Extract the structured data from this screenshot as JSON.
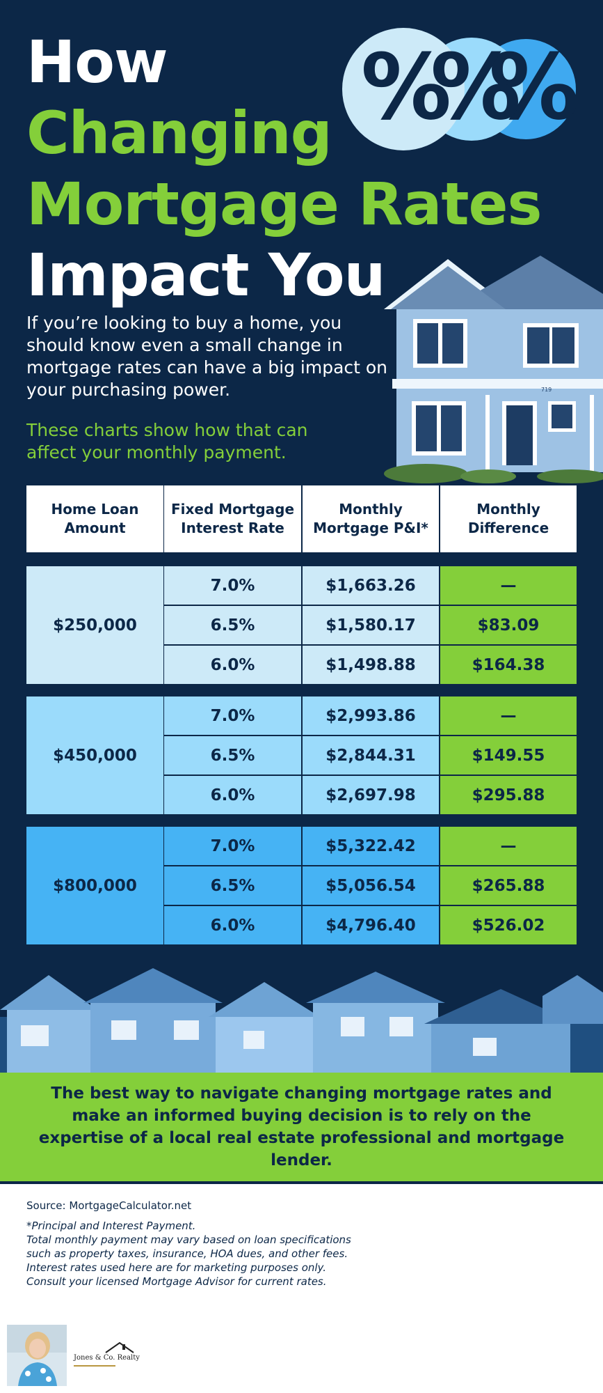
{
  "title": {
    "line1": "How",
    "line2": "Changing",
    "line3": "Mortgage Rates",
    "line4": "Impact You"
  },
  "intro": "If you’re looking to buy a home, you should know even a small change in mortgage rates can have a big impact on your purchasing power.",
  "subtitle": "These charts show how that can affect your monthly payment.",
  "percent_glyphs": [
    "%",
    "%",
    "%"
  ],
  "table": {
    "headers": [
      "Home Loan Amount",
      "Fixed Mortgage Interest Rate",
      "Monthly Mortgage P&I*",
      "Monthly Difference"
    ],
    "groups": [
      {
        "loan": "$250,000",
        "rows": [
          {
            "rate": "7.0%",
            "payment": "$1,663.26",
            "difference": "—"
          },
          {
            "rate": "6.5%",
            "payment": "$1,580.17",
            "difference": "$83.09"
          },
          {
            "rate": "6.0%",
            "payment": "$1,498.88",
            "difference": "$164.38"
          }
        ]
      },
      {
        "loan": "$450,000",
        "rows": [
          {
            "rate": "7.0%",
            "payment": "$2,993.86",
            "difference": "—"
          },
          {
            "rate": "6.5%",
            "payment": "$2,844.31",
            "difference": "$149.55"
          },
          {
            "rate": "6.0%",
            "payment": "$2,697.98",
            "difference": "$295.88"
          }
        ]
      },
      {
        "loan": "$800,000",
        "rows": [
          {
            "rate": "7.0%",
            "payment": "$5,322.42",
            "difference": "—"
          },
          {
            "rate": "6.5%",
            "payment": "$5,056.54",
            "difference": "$265.88"
          },
          {
            "rate": "6.0%",
            "payment": "$4,796.40",
            "difference": "$526.02"
          }
        ]
      }
    ]
  },
  "cta": "The best way to navigate changing mortgage rates and make an informed buying decision is to rely on the expertise of a local real estate professional and mortgage lender.",
  "source": "Source: MortgageCalculator.net",
  "notes": [
    "*Principal and Interest Payment.",
    "Total monthly payment may vary based on loan specifications",
    "such as property taxes, insurance, HOA dues, and other fees.",
    "Interest rates used here are for marketing purposes only.",
    "Consult your licensed Mortgage Advisor for current rates."
  ],
  "house_number": "719",
  "brand": "Jones & Co. Realty",
  "colors": {
    "navy": "#0c2747",
    "green": "#84cf3a",
    "tier1": "#cdeaf8",
    "tier2": "#9bdbfb",
    "tier3": "#46b3f4"
  }
}
